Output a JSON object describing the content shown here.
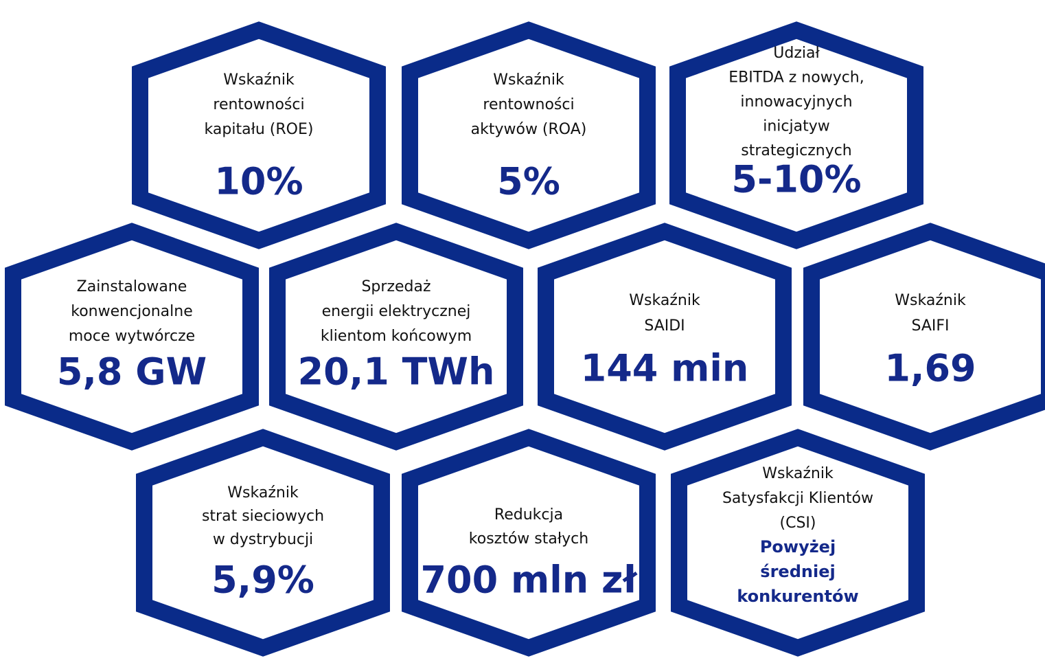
{
  "hexagons": [
    {
      "label": [
        "Wskaźnik",
        "rentowności",
        "kapitału (ROE)"
      ],
      "value": [
        "10%"
      ]
    },
    {
      "label": [
        "Wskaźnik",
        "rentowności",
        "aktywów (ROA)"
      ],
      "value": [
        "5%"
      ]
    },
    {
      "label": [
        "Udział",
        "EBITDA z nowych,",
        "innowacyjnych",
        "inicjatyw",
        "strategicznych"
      ],
      "value": [
        "5-10%"
      ]
    },
    {
      "label": [
        "Zainstalowane",
        "konwencjonalne",
        "moce wytwórcze"
      ],
      "value": [
        "5,8 GW"
      ]
    },
    {
      "label": [
        "Sprzedaż",
        "energii elektrycznej",
        "klientom końcowym"
      ],
      "value": [
        "20,1 TWh"
      ]
    },
    {
      "label": [
        "Wskaźnik",
        "SAIDI"
      ],
      "value": [
        "144 min"
      ]
    },
    {
      "label": [
        "Wskaźnik",
        "SAIFI"
      ],
      "value": [
        "1,69"
      ]
    },
    {
      "label": [
        "Wskaźnik",
        "strat sieciowych",
        "w dystrybucji"
      ],
      "value": [
        "5,9%"
      ]
    },
    {
      "label": [
        "Redukcja",
        "kosztów stałych"
      ],
      "value": [
        "700 mln zł"
      ]
    },
    {
      "label": [
        "Wskaźnik",
        "Satysfakcji Klientów",
        "(CSI)"
      ],
      "value": [
        "Powyżej",
        "średniej",
        "konkurentów"
      ]
    }
  ]
}
